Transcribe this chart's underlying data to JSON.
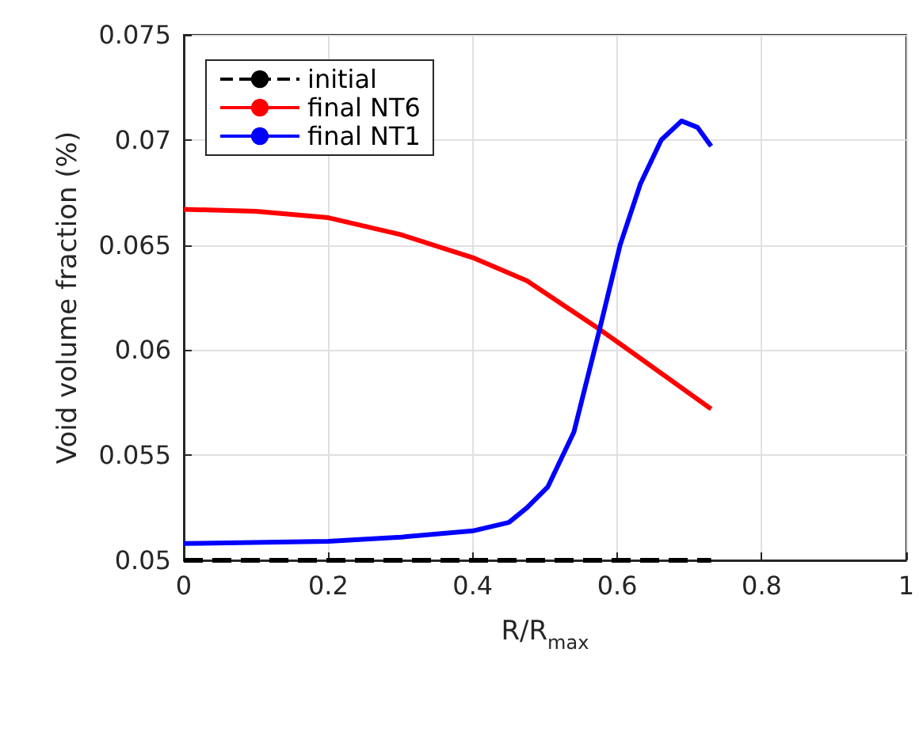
{
  "chart_data": {
    "type": "line",
    "xlabel": "R/R$_{max}$",
    "ylabel": "Void volume fraction (%)",
    "xlim": [
      0,
      1
    ],
    "xticks": [
      0,
      0.2,
      0.4,
      0.6,
      0.8,
      1
    ],
    "ylim": [
      0.05,
      0.075
    ],
    "yticks": [
      0.05,
      0.055,
      0.06,
      0.065,
      0.07,
      0.075
    ],
    "grid": true,
    "legend": "top left",
    "marker": "none",
    "series": [
      {
        "name": "initial",
        "color": "#000000",
        "line_style": "dashed",
        "x": [
          0,
          0.73
        ],
        "values": [
          0.05,
          0.05
        ]
      },
      {
        "name": "final NT6",
        "color": "#ff0000",
        "line_style": "solid",
        "x": [
          0,
          0.1,
          0.2,
          0.3,
          0.4,
          0.475,
          0.575,
          0.604,
          0.73
        ],
        "values": [
          0.0667,
          0.0666,
          0.0663,
          0.0655,
          0.0644,
          0.0633,
          0.061,
          0.0603,
          0.0572
        ]
      },
      {
        "name": "final NT1",
        "color": "#0000ff",
        "line_style": "solid",
        "x": [
          0,
          0.2,
          0.3,
          0.4,
          0.45,
          0.475,
          0.504,
          0.54,
          0.575,
          0.604,
          0.632,
          0.661,
          0.689,
          0.711,
          0.73
        ],
        "values": [
          0.0508,
          0.0509,
          0.0511,
          0.0514,
          0.0518,
          0.0525,
          0.0535,
          0.0561,
          0.0609,
          0.065,
          0.0679,
          0.07,
          0.0709,
          0.0706,
          0.0697
        ]
      }
    ]
  }
}
